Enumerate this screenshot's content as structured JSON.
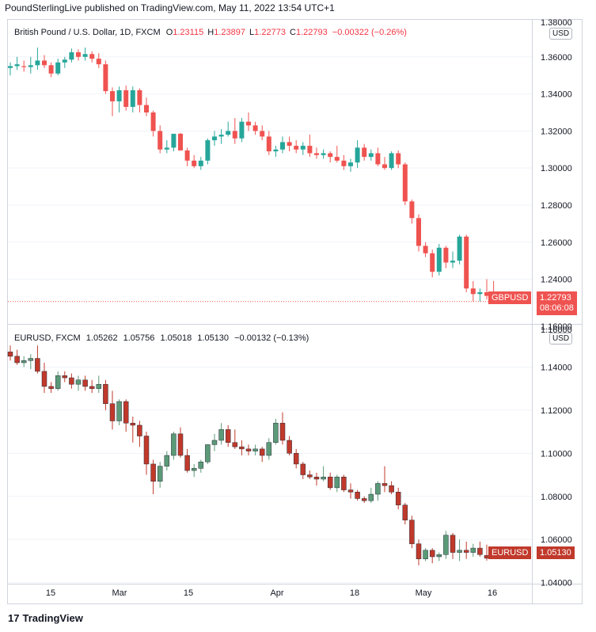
{
  "header": {
    "publisher": "PoundSterlingLive published on TradingView.com, May 11, 2022 13:54 UTC+1"
  },
  "footer": {
    "logo_glyph": "17",
    "brand": "TradingView"
  },
  "colors": {
    "up": "#26a69a",
    "down": "#ef5350",
    "up2": "#5b9a78",
    "down2": "#c0392b",
    "grid": "#f0f3fa"
  },
  "chart_data": [
    {
      "type": "candlestick",
      "legend": {
        "title": "British Pound / U.S. Dollar, 1D, FXCM",
        "o_label": "O",
        "o": "1.23115",
        "h_label": "H",
        "h": "1.23897",
        "l_label": "L",
        "l": "1.22773",
        "c_label": "C",
        "c": "1.22793",
        "change": "−0.00322 (−0.26%)"
      },
      "currency": "USD",
      "ylim": [
        1.2163,
        1.38
      ],
      "yticks": [
        1.36,
        1.34,
        1.32,
        1.3,
        1.28,
        1.26,
        1.24
      ],
      "ytick_labels": [
        "1.36000",
        "1.34000",
        "1.32000",
        "1.30000",
        "1.28000",
        "1.26000",
        "1.24000"
      ],
      "ytick_top_partial": "1.38000",
      "ytick_bottom_partial": "1.16000",
      "last_price": 1.22793,
      "symbol_tag": "GBPUSD",
      "price_tag": "1.22793",
      "countdown": "08:06:08",
      "candles": [
        [
          1.354,
          1.357,
          1.35,
          1.355
        ],
        [
          1.355,
          1.36,
          1.353,
          1.356
        ],
        [
          1.355,
          1.358,
          1.352,
          1.3545
        ],
        [
          1.3545,
          1.36,
          1.351,
          1.3555
        ],
        [
          1.3555,
          1.365,
          1.353,
          1.358
        ],
        [
          1.358,
          1.361,
          1.354,
          1.3555
        ],
        [
          1.3555,
          1.357,
          1.349,
          1.351
        ],
        [
          1.351,
          1.359,
          1.35,
          1.357
        ],
        [
          1.357,
          1.36,
          1.354,
          1.3585
        ],
        [
          1.3585,
          1.3645,
          1.357,
          1.3625
        ],
        [
          1.3625,
          1.364,
          1.358,
          1.36
        ],
        [
          1.36,
          1.365,
          1.358,
          1.3615
        ],
        [
          1.3615,
          1.363,
          1.357,
          1.359
        ],
        [
          1.359,
          1.362,
          1.354,
          1.356
        ],
        [
          1.356,
          1.358,
          1.34,
          1.3415
        ],
        [
          1.3415,
          1.3435,
          1.328,
          1.336
        ],
        [
          1.336,
          1.344,
          1.33,
          1.342
        ],
        [
          1.342,
          1.3445,
          1.331,
          1.333
        ],
        [
          1.333,
          1.344,
          1.33,
          1.342
        ],
        [
          1.342,
          1.343,
          1.33,
          1.334
        ],
        [
          1.334,
          1.338,
          1.328,
          1.33
        ],
        [
          1.33,
          1.331,
          1.317,
          1.32
        ],
        [
          1.32,
          1.323,
          1.308,
          1.31
        ],
        [
          1.31,
          1.315,
          1.308,
          1.311
        ],
        [
          1.311,
          1.318,
          1.309,
          1.3185
        ],
        [
          1.3185,
          1.319,
          1.31,
          1.3095
        ],
        [
          1.3095,
          1.311,
          1.301,
          1.304
        ],
        [
          1.304,
          1.307,
          1.3,
          1.301
        ],
        [
          1.301,
          1.306,
          1.299,
          1.304
        ],
        [
          1.304,
          1.316,
          1.302,
          1.315
        ],
        [
          1.315,
          1.32,
          1.312,
          1.317
        ],
        [
          1.317,
          1.321,
          1.313,
          1.318
        ],
        [
          1.318,
          1.325,
          1.317,
          1.32
        ],
        [
          1.32,
          1.327,
          1.313,
          1.316
        ],
        [
          1.316,
          1.327,
          1.314,
          1.325
        ],
        [
          1.325,
          1.33,
          1.32,
          1.323
        ],
        [
          1.323,
          1.325,
          1.318,
          1.32
        ],
        [
          1.32,
          1.323,
          1.315,
          1.317
        ],
        [
          1.317,
          1.32,
          1.307,
          1.309
        ],
        [
          1.309,
          1.312,
          1.306,
          1.31
        ],
        [
          1.31,
          1.317,
          1.308,
          1.314
        ],
        [
          1.314,
          1.317,
          1.309,
          1.312
        ],
        [
          1.312,
          1.315,
          1.308,
          1.31
        ],
        [
          1.31,
          1.314,
          1.307,
          1.312
        ],
        [
          1.312,
          1.318,
          1.306,
          1.308
        ],
        [
          1.308,
          1.311,
          1.305,
          1.307
        ],
        [
          1.307,
          1.31,
          1.305,
          1.308
        ],
        [
          1.308,
          1.309,
          1.303,
          1.306
        ],
        [
          1.306,
          1.312,
          1.303,
          1.304
        ],
        [
          1.304,
          1.307,
          1.299,
          1.301
        ],
        [
          1.301,
          1.305,
          1.298,
          1.303
        ],
        [
          1.303,
          1.315,
          1.3,
          1.311
        ],
        [
          1.311,
          1.313,
          1.304,
          1.306
        ],
        [
          1.306,
          1.31,
          1.304,
          1.308
        ],
        [
          1.308,
          1.311,
          1.301,
          1.302
        ],
        [
          1.302,
          1.306,
          1.299,
          1.3
        ],
        [
          1.3,
          1.309,
          1.299,
          1.308
        ],
        [
          1.308,
          1.3095,
          1.3,
          1.302
        ],
        [
          1.302,
          1.303,
          1.28,
          1.282
        ],
        [
          1.282,
          1.283,
          1.27,
          1.273
        ],
        [
          1.273,
          1.275,
          1.255,
          1.258
        ],
        [
          1.258,
          1.26,
          1.252,
          1.254
        ],
        [
          1.254,
          1.256,
          1.241,
          1.244
        ],
        [
          1.244,
          1.259,
          1.242,
          1.257
        ],
        [
          1.257,
          1.258,
          1.246,
          1.249
        ],
        [
          1.249,
          1.255,
          1.246,
          1.25
        ],
        [
          1.25,
          1.264,
          1.248,
          1.263
        ],
        [
          1.263,
          1.264,
          1.233,
          1.235
        ],
        [
          1.235,
          1.239,
          1.228,
          1.232
        ],
        [
          1.232,
          1.235,
          1.228,
          1.233
        ],
        [
          1.233,
          1.24,
          1.229,
          1.231
        ],
        [
          1.2311,
          1.239,
          1.2277,
          1.2279
        ]
      ]
    },
    {
      "type": "candlestick",
      "legend": {
        "title": "EURUSD, FXCM",
        "o": "1.05262",
        "h": "1.05756",
        "l": "1.05018",
        "c": "1.05130",
        "change": "−0.00132 (−0.13%)"
      },
      "currency": "USD",
      "ylim": [
        1.0395,
        1.16
      ],
      "yticks": [
        1.14,
        1.12,
        1.1,
        1.08,
        1.06,
        1.04
      ],
      "ytick_labels": [
        "1.14000",
        "1.12000",
        "1.10000",
        "1.08000",
        "1.06000",
        "1.04000"
      ],
      "ytick_top_partial": "1.16000",
      "last_price": 1.0513,
      "symbol_tag": "EURUSD",
      "price_tag": "1.05130",
      "candles": [
        [
          1.147,
          1.15,
          1.143,
          1.145
        ],
        [
          1.145,
          1.148,
          1.141,
          1.142
        ],
        [
          1.142,
          1.145,
          1.14,
          1.143
        ],
        [
          1.143,
          1.146,
          1.139,
          1.144
        ],
        [
          1.144,
          1.15,
          1.137,
          1.138
        ],
        [
          1.138,
          1.142,
          1.128,
          1.131
        ],
        [
          1.131,
          1.133,
          1.128,
          1.13
        ],
        [
          1.13,
          1.138,
          1.129,
          1.136
        ],
        [
          1.136,
          1.138,
          1.133,
          1.135
        ],
        [
          1.135,
          1.137,
          1.13,
          1.132
        ],
        [
          1.132,
          1.136,
          1.129,
          1.134
        ],
        [
          1.134,
          1.136,
          1.129,
          1.131
        ],
        [
          1.131,
          1.134,
          1.128,
          1.13
        ],
        [
          1.13,
          1.136,
          1.128,
          1.132
        ],
        [
          1.132,
          1.134,
          1.12,
          1.123
        ],
        [
          1.123,
          1.129,
          1.111,
          1.115
        ],
        [
          1.115,
          1.125,
          1.113,
          1.124
        ],
        [
          1.124,
          1.125,
          1.11,
          1.114
        ],
        [
          1.114,
          1.117,
          1.105,
          1.113
        ],
        [
          1.113,
          1.115,
          1.103,
          1.108
        ],
        [
          1.108,
          1.11,
          1.09,
          1.095
        ],
        [
          1.095,
          1.097,
          1.081,
          1.087
        ],
        [
          1.087,
          1.096,
          1.084,
          1.094
        ],
        [
          1.094,
          1.101,
          1.092,
          1.099
        ],
        [
          1.099,
          1.11,
          1.097,
          1.109
        ],
        [
          1.109,
          1.112,
          1.098,
          1.099
        ],
        [
          1.099,
          1.102,
          1.091,
          1.092
        ],
        [
          1.092,
          1.095,
          1.089,
          1.093
        ],
        [
          1.093,
          1.097,
          1.091,
          1.096
        ],
        [
          1.096,
          1.104,
          1.095,
          1.104
        ],
        [
          1.104,
          1.109,
          1.101,
          1.106
        ],
        [
          1.106,
          1.114,
          1.104,
          1.111
        ],
        [
          1.111,
          1.113,
          1.103,
          1.105
        ],
        [
          1.105,
          1.111,
          1.102,
          1.103
        ],
        [
          1.103,
          1.106,
          1.099,
          1.102
        ],
        [
          1.102,
          1.104,
          1.099,
          1.101
        ],
        [
          1.101,
          1.104,
          1.099,
          1.102
        ],
        [
          1.102,
          1.103,
          1.096,
          1.099
        ],
        [
          1.099,
          1.107,
          1.097,
          1.105
        ],
        [
          1.105,
          1.116,
          1.104,
          1.114
        ],
        [
          1.114,
          1.119,
          1.104,
          1.106
        ],
        [
          1.106,
          1.108,
          1.099,
          1.1
        ],
        [
          1.1,
          1.102,
          1.093,
          1.095
        ],
        [
          1.095,
          1.096,
          1.088,
          1.09
        ],
        [
          1.09,
          1.092,
          1.088,
          1.089
        ],
        [
          1.089,
          1.091,
          1.085,
          1.088
        ],
        [
          1.088,
          1.094,
          1.087,
          1.089
        ],
        [
          1.089,
          1.091,
          1.083,
          1.084
        ],
        [
          1.084,
          1.09,
          1.082,
          1.089
        ],
        [
          1.089,
          1.09,
          1.082,
          1.083
        ],
        [
          1.083,
          1.086,
          1.079,
          1.082
        ],
        [
          1.082,
          1.083,
          1.078,
          1.079
        ],
        [
          1.079,
          1.08,
          1.077,
          1.078
        ],
        [
          1.078,
          1.084,
          1.077,
          1.081
        ],
        [
          1.081,
          1.087,
          1.078,
          1.086
        ],
        [
          1.086,
          1.094,
          1.082,
          1.085
        ],
        [
          1.085,
          1.087,
          1.081,
          1.082
        ],
        [
          1.082,
          1.084,
          1.074,
          1.076
        ],
        [
          1.076,
          1.077,
          1.067,
          1.069
        ],
        [
          1.069,
          1.071,
          1.056,
          1.058
        ],
        [
          1.058,
          1.06,
          1.048,
          1.051
        ],
        [
          1.051,
          1.056,
          1.05,
          1.055
        ],
        [
          1.055,
          1.056,
          1.049,
          1.052
        ],
        [
          1.052,
          1.054,
          1.05,
          1.053
        ],
        [
          1.053,
          1.064,
          1.051,
          1.062
        ],
        [
          1.062,
          1.063,
          1.051,
          1.054
        ],
        [
          1.054,
          1.06,
          1.05,
          1.055
        ],
        [
          1.055,
          1.059,
          1.051,
          1.054
        ],
        [
          1.054,
          1.058,
          1.052,
          1.056
        ],
        [
          1.056,
          1.059,
          1.052,
          1.053
        ],
        [
          1.0526,
          1.0576,
          1.0502,
          1.0513
        ]
      ]
    }
  ],
  "x_axis": {
    "labels": [
      "15",
      "Mar",
      "15",
      "Apr",
      "18",
      "May",
      "16"
    ]
  }
}
